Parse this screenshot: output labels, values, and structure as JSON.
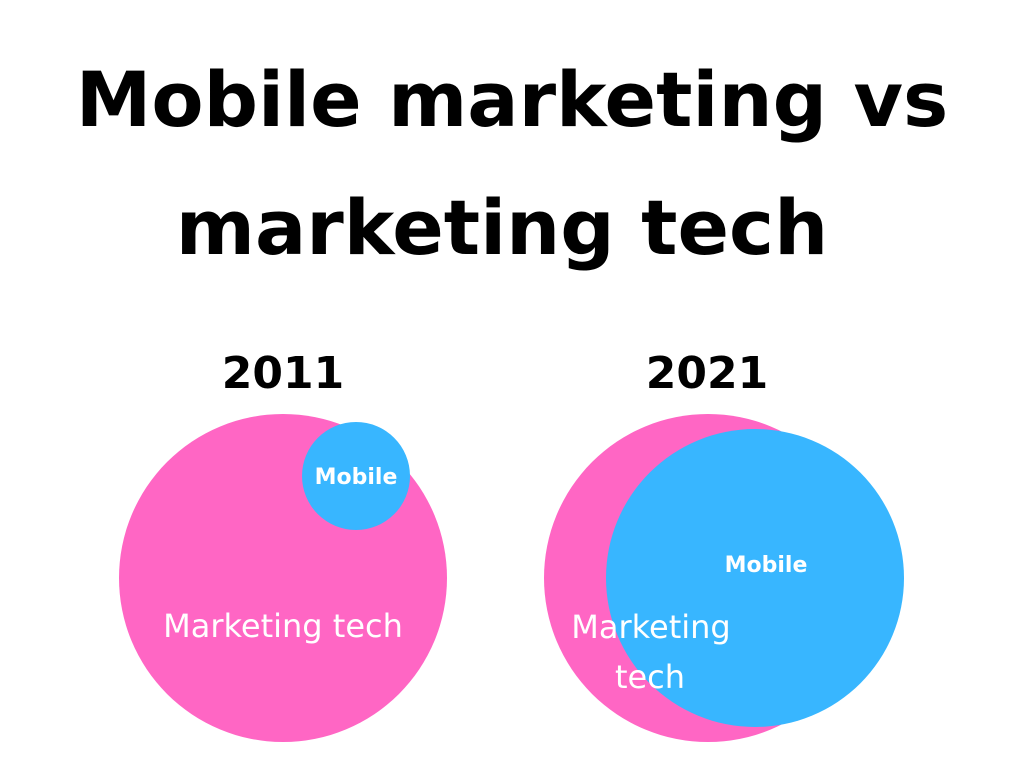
{
  "title": {
    "line1": "Mobile marketing vs",
    "line2": "marketing tech"
  },
  "diagrams": [
    {
      "year": "2011",
      "outer_label": "Marketing tech",
      "inner_label": "Mobile"
    },
    {
      "year": "2021",
      "outer_label_line1": "Marketing",
      "outer_label_line2": "tech",
      "inner_label": "Mobile"
    }
  ],
  "colors": {
    "marketing_tech": "#ff66c4",
    "mobile": "#38b6ff",
    "text": "#000000",
    "label": "#ffffff"
  }
}
